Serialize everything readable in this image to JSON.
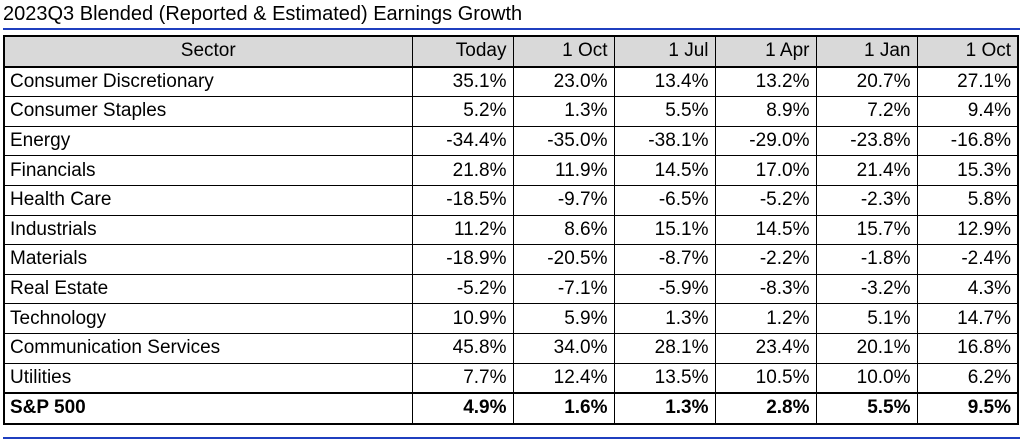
{
  "title": "2023Q3 Blended (Reported & Estimated) Earnings Growth",
  "chart_data": {
    "type": "table",
    "title": "2023Q3 Blended (Reported & Estimated) Earnings Growth",
    "columns": [
      "Sector",
      "Today",
      "1 Oct",
      "1 Jul",
      "1 Apr",
      "1 Jan",
      "1 Oct"
    ],
    "rows": [
      {
        "sector": "Consumer Discretionary",
        "values": [
          "35.1%",
          "23.0%",
          "13.4%",
          "13.2%",
          "20.7%",
          "27.1%"
        ]
      },
      {
        "sector": "Consumer Staples",
        "values": [
          "5.2%",
          "1.3%",
          "5.5%",
          "8.9%",
          "7.2%",
          "9.4%"
        ]
      },
      {
        "sector": "Energy",
        "values": [
          "-34.4%",
          "-35.0%",
          "-38.1%",
          "-29.0%",
          "-23.8%",
          "-16.8%"
        ]
      },
      {
        "sector": "Financials",
        "values": [
          "21.8%",
          "11.9%",
          "14.5%",
          "17.0%",
          "21.4%",
          "15.3%"
        ]
      },
      {
        "sector": "Health Care",
        "values": [
          "-18.5%",
          "-9.7%",
          "-6.5%",
          "-5.2%",
          "-2.3%",
          "5.8%"
        ]
      },
      {
        "sector": "Industrials",
        "values": [
          "11.2%",
          "8.6%",
          "15.1%",
          "14.5%",
          "15.7%",
          "12.9%"
        ]
      },
      {
        "sector": "Materials",
        "values": [
          "-18.9%",
          "-20.5%",
          "-8.7%",
          "-2.2%",
          "-1.8%",
          "-2.4%"
        ]
      },
      {
        "sector": "Real Estate",
        "values": [
          "-5.2%",
          "-7.1%",
          "-5.9%",
          "-8.3%",
          "-3.2%",
          "4.3%"
        ]
      },
      {
        "sector": "Technology",
        "values": [
          "10.9%",
          "5.9%",
          "1.3%",
          "1.2%",
          "5.1%",
          "14.7%"
        ]
      },
      {
        "sector": "Communication Services",
        "values": [
          "45.8%",
          "34.0%",
          "28.1%",
          "23.4%",
          "20.1%",
          "16.8%"
        ]
      },
      {
        "sector": "Utilities",
        "values": [
          "7.7%",
          "12.4%",
          "13.5%",
          "10.5%",
          "10.0%",
          "6.2%"
        ]
      },
      {
        "sector": "S&P 500",
        "values": [
          "4.9%",
          "1.6%",
          "1.3%",
          "2.8%",
          "5.5%",
          "9.5%"
        ],
        "bold": true
      }
    ]
  },
  "colors": {
    "header_bg": "#d9d9d9",
    "accent_rule": "#1f3fbf",
    "border": "#000000"
  }
}
